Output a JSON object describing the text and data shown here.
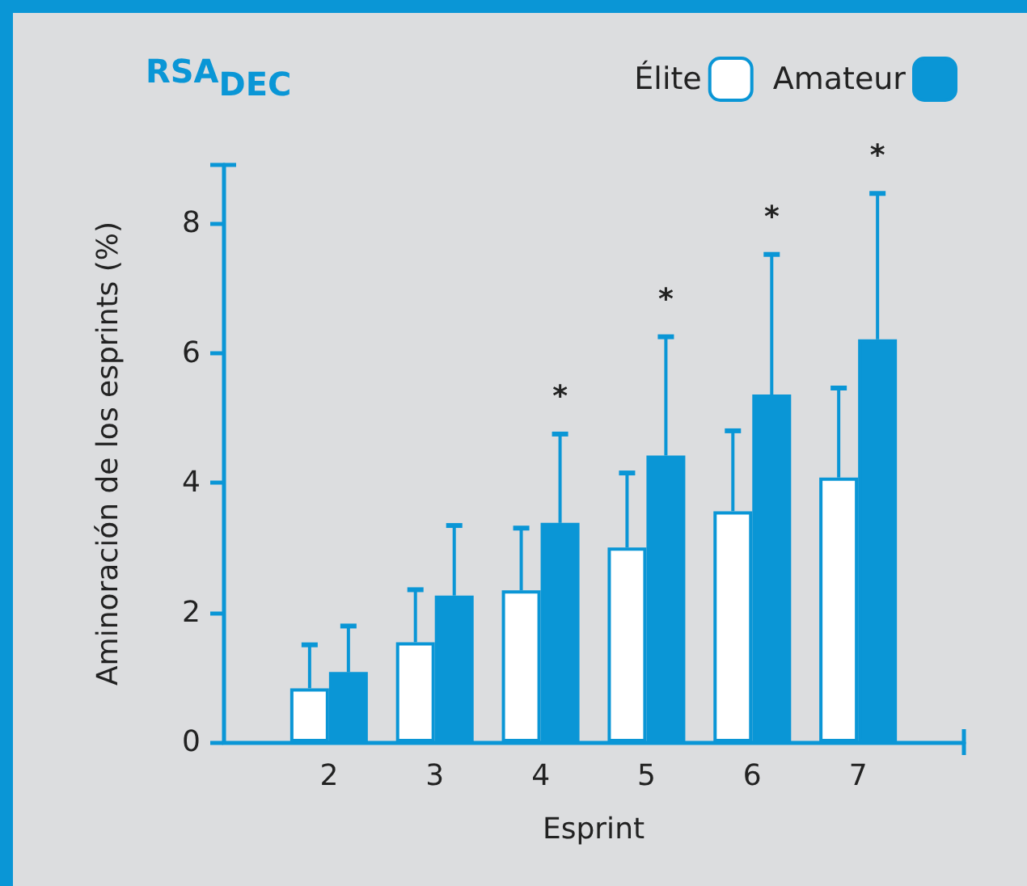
{
  "chart_data": {
    "type": "bar",
    "title": "RSA$_{DEC}$",
    "xlabel": "Esprint",
    "ylabel": "Aminoración de los esprints (%)",
    "categories": [
      null,
      "2",
      "3",
      "4",
      "5",
      "6",
      "7",
      null
    ],
    "series": [
      {
        "name": "Élite",
        "color": "#ffffff",
        "values": [
          null,
          0.83,
          1.54,
          2.34,
          3.0,
          3.56,
          4.08,
          null
        ],
        "errors": [
          null,
          [
            0.83,
            1.5
          ],
          [
            1.54,
            2.35
          ],
          [
            2.34,
            3.3
          ],
          [
            3.0,
            4.15
          ],
          [
            3.56,
            4.8
          ],
          [
            4.08,
            5.46
          ],
          null
        ]
      },
      {
        "name": "Amateur",
        "color": "#0a96d6",
        "values": [
          null,
          1.08,
          2.26,
          3.38,
          4.42,
          5.36,
          6.21,
          null
        ],
        "errors": [
          null,
          [
            1.08,
            1.79
          ],
          [
            2.26,
            3.34
          ],
          [
            3.38,
            4.75
          ],
          [
            4.42,
            6.25
          ],
          [
            5.36,
            7.52
          ],
          [
            6.21,
            8.46
          ],
          null
        ]
      }
    ],
    "ylim": [
      0,
      8.9
    ],
    "yticks": [
      0,
      2,
      4,
      6,
      8
    ],
    "annotations": [
      "*",
      "*",
      "*",
      "*"
    ],
    "legend": "top right"
  }
}
